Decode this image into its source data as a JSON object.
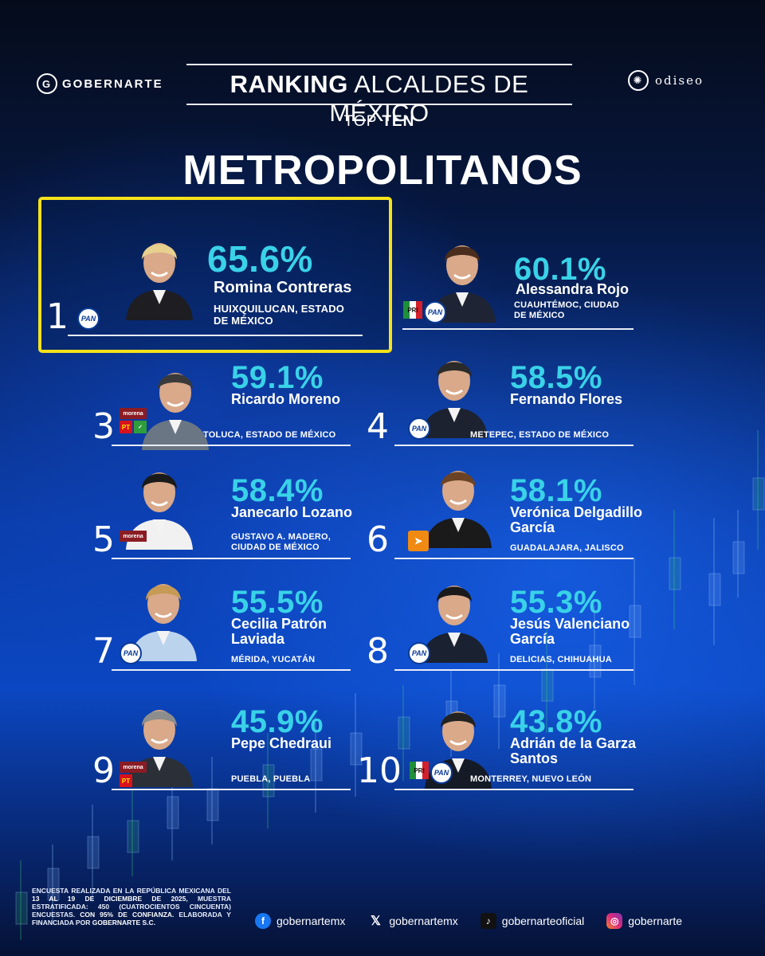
{
  "header": {
    "brand_left": "GOBERNARTE",
    "brand_right": "odiseo",
    "title_bold": "RANKING",
    "title_light": "ALCALDES DE MÉXICO",
    "subtitle_light": "TOP",
    "subtitle_bold": "TEN",
    "category": "METROPOLITANOS"
  },
  "colors": {
    "percent": "#39d2e8",
    "highlight": "#f5e21b",
    "background": "#0a3ca8"
  },
  "entries": [
    {
      "rank": "1",
      "percent": "65.6%",
      "name": "Romina Contreras",
      "location": "HUIXQUILUCAN, ESTADO DE MÉXICO",
      "party": [
        "PAN"
      ]
    },
    {
      "rank": "",
      "percent": "60.1%",
      "name": "Alessandra Rojo",
      "location": "CUAUHTÉMOC, CIUDAD DE MÉXICO",
      "party": [
        "PRI",
        "PAN"
      ]
    },
    {
      "rank": "3",
      "percent": "59.1%",
      "name": "Ricardo Moreno",
      "location": "TOLUCA, ESTADO DE MÉXICO",
      "party": [
        "morena",
        "PT",
        "VERDE"
      ]
    },
    {
      "rank": "4",
      "percent": "58.5%",
      "name": "Fernando Flores",
      "location": "METEPEC, ESTADO DE MÉXICO",
      "party": [
        "PAN"
      ]
    },
    {
      "rank": "5",
      "percent": "58.4%",
      "name": "Janecarlo Lozano",
      "location": "GUSTAVO A. MADERO, CIUDAD DE MÉXICO",
      "party": [
        "morena"
      ]
    },
    {
      "rank": "6",
      "percent": "58.1%",
      "name": "Verónica Delgadillo García",
      "location": "GUADALAJARA, JALISCO",
      "party": [
        "MC"
      ]
    },
    {
      "rank": "7",
      "percent": "55.5%",
      "name": "Cecilia Patrón Laviada",
      "location": "MÉRIDA, YUCATÁN",
      "party": [
        "PAN"
      ]
    },
    {
      "rank": "8",
      "percent": "55.3%",
      "name": "Jesús Valenciano García",
      "location": "DELICIAS, CHIHUAHUA",
      "party": [
        "PAN"
      ]
    },
    {
      "rank": "9",
      "percent": "45.9%",
      "name": "Pepe Chedraui",
      "location": "PUEBLA, PUEBLA",
      "party": [
        "morena",
        "PT"
      ]
    },
    {
      "rank": "10",
      "percent": "43.8%",
      "name": "Adrián de la Garza Santos",
      "location": "MONTERREY, NUEVO LEÓN",
      "party": [
        "PRI",
        "PAN"
      ]
    }
  ],
  "footer": {
    "disclaimer_a": "ENCUESTA REALIZADA EN LA REPÚBLICA MEXICANA DEL ",
    "disclaimer_dates": "13 AL 19 DE DICIEMBRE DE 2025",
    "disclaimer_b": ", MUESTRA ESTRATIFICADA: 450 (CUATROCIENTOS CINCUENTA) ENCUESTAS. ",
    "disclaimer_conf": "CON 95% DE CONFIANZA.",
    "disclaimer_c": " ELABORADA Y FINANCIADA POR ",
    "disclaimer_org": "GOBERNARTE S.C.",
    "socials": [
      {
        "icon": "facebook-icon",
        "handle": "gobernartemx"
      },
      {
        "icon": "x-icon",
        "handle": "gobernartemx"
      },
      {
        "icon": "tiktok-icon",
        "handle": "gobernarteoficial"
      },
      {
        "icon": "instagram-icon",
        "handle": "gobernarte"
      }
    ]
  }
}
